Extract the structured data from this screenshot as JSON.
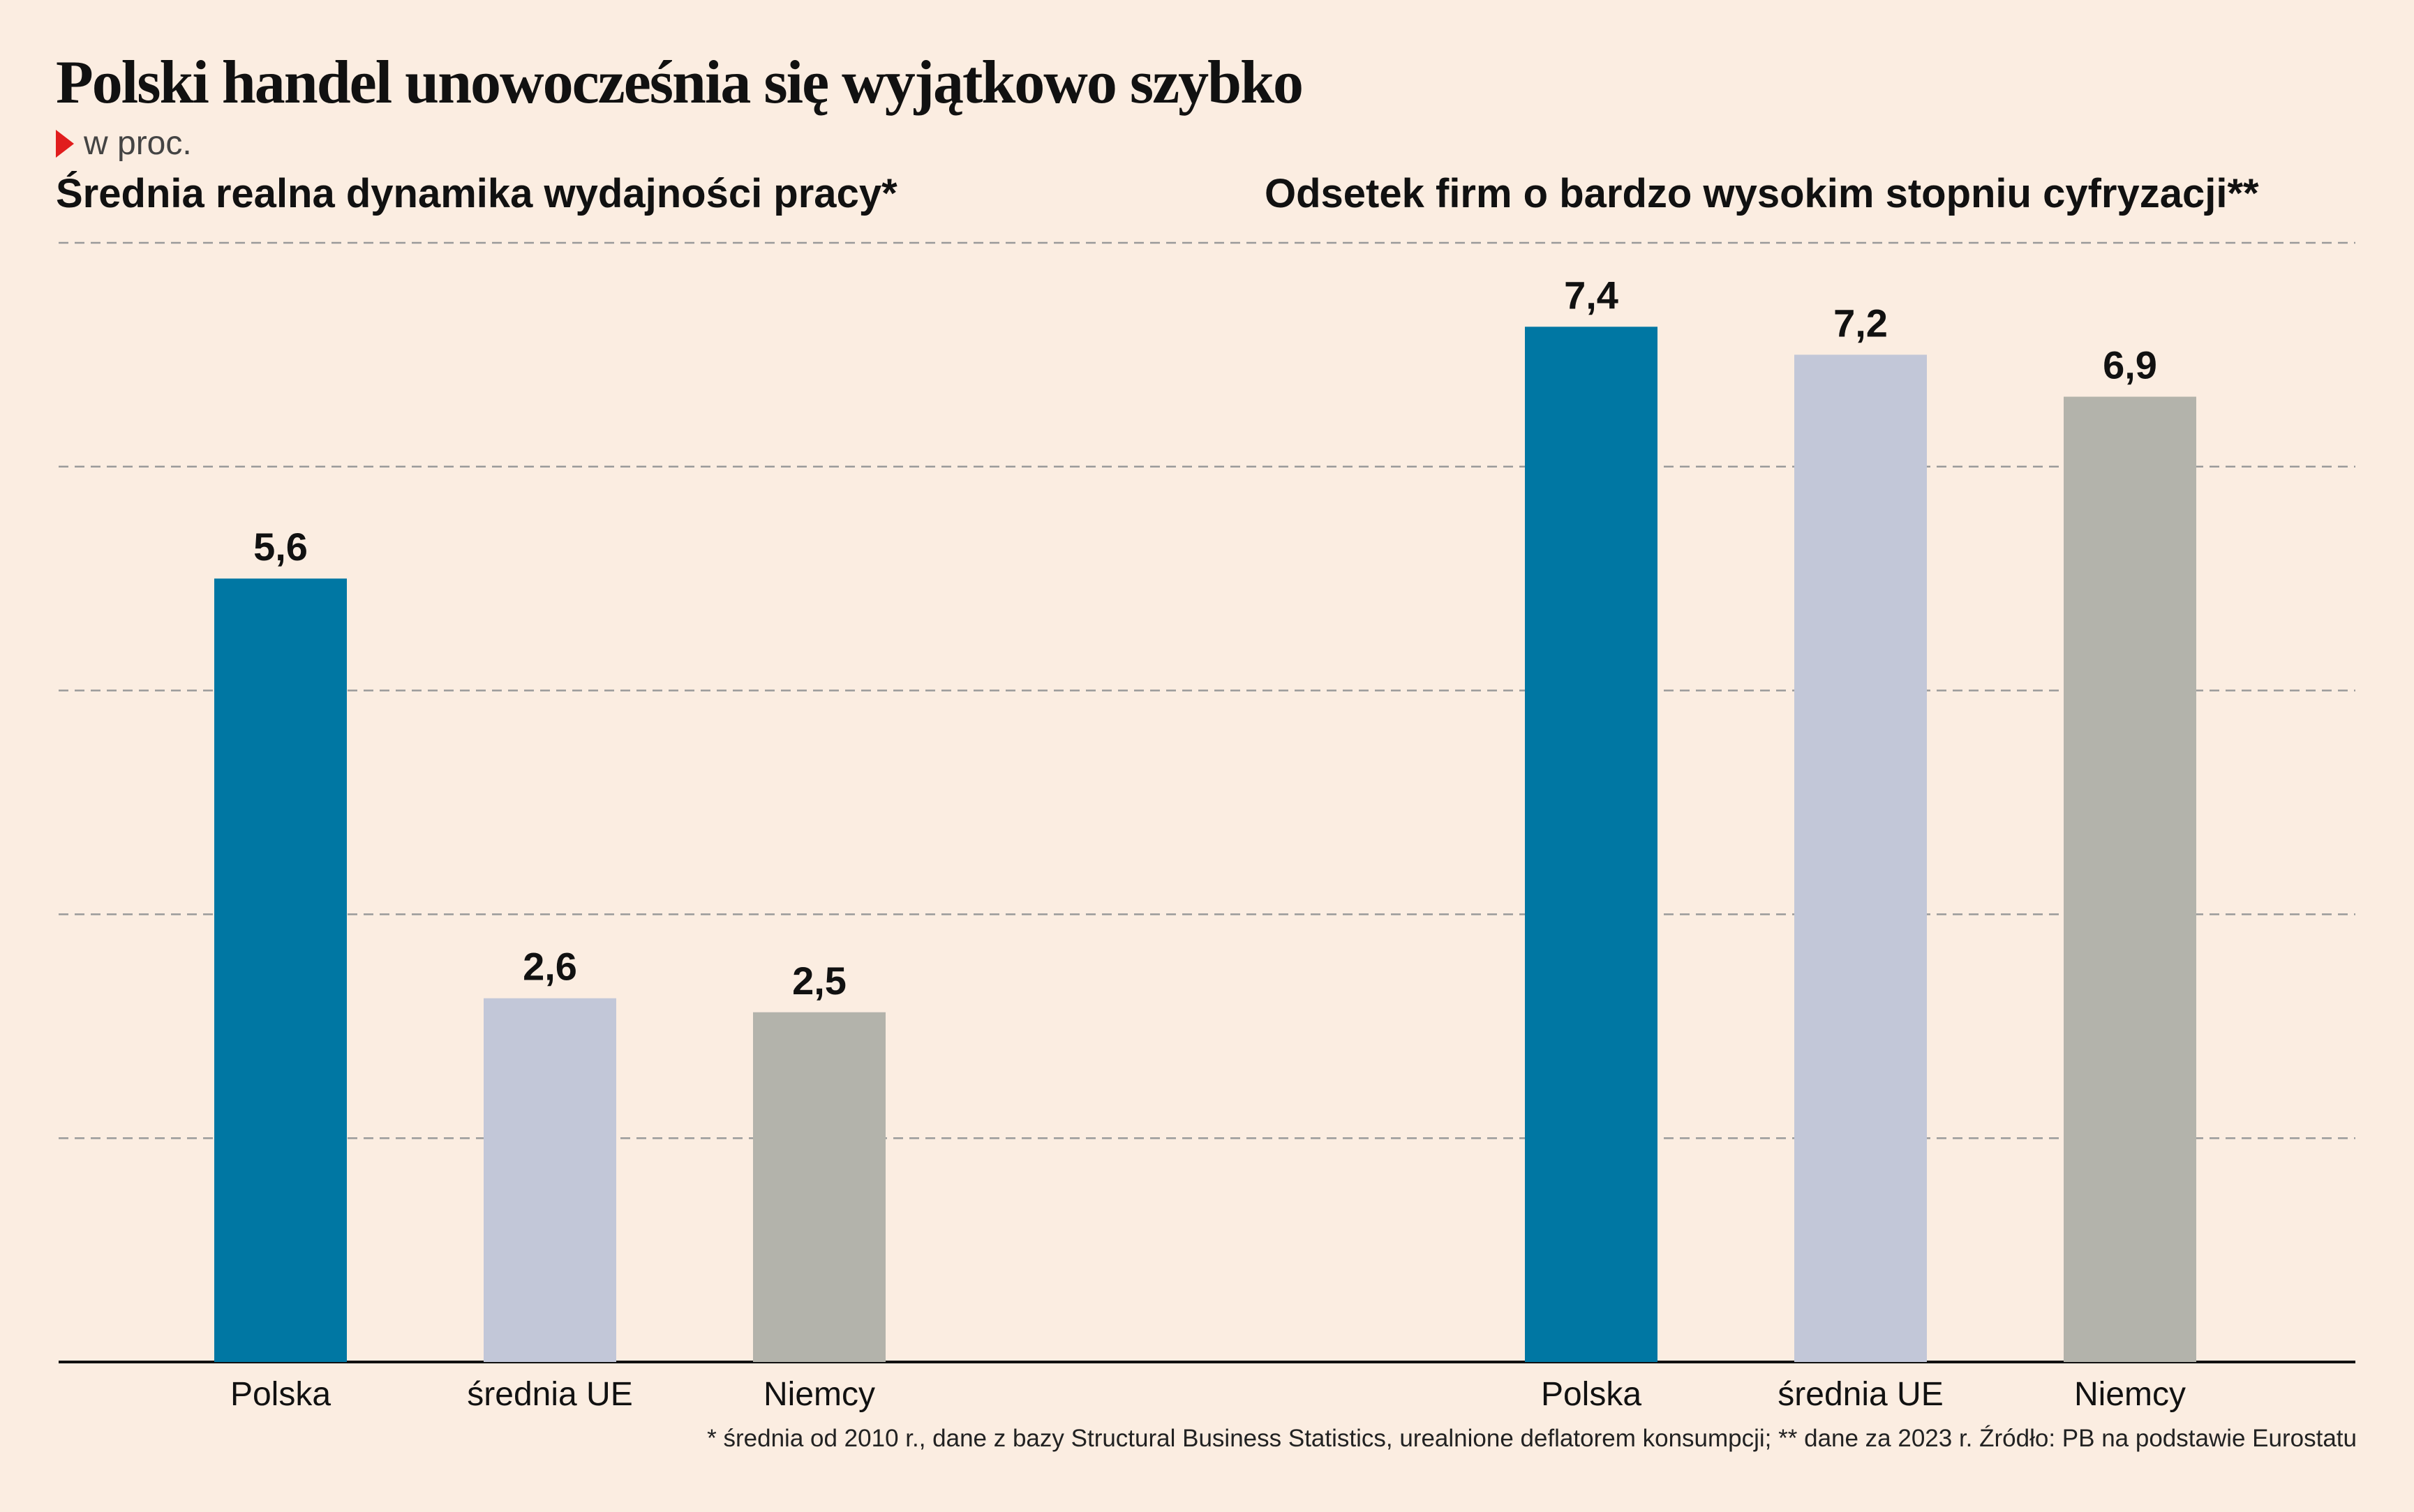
{
  "title": "Polski handel unowocześnia się wyjątkowo szybko",
  "unit": "w proc.",
  "colors": {
    "background": "#fbede1",
    "polska": "#0077a3",
    "srednia_ue": "#c2c7d8",
    "niemcy": "#b3b3ab",
    "gridline": "#9a9a9a",
    "axis": "#111111",
    "unit_marker": "#e11d1d"
  },
  "icons": {
    "unit_marker": "red-triangle-marker-icon"
  },
  "footnote": "* średnia od 2010 r., dane z bazy Structural Business Statistics, urealnione deflatorem konsumpcji; ** dane za 2023 r. Źródło: PB na podstawie Eurostatu",
  "chart_data": [
    {
      "type": "bar",
      "title": "Średnia realna dynamika wydajności pracy*",
      "categories": [
        "Polska",
        "średnia UE",
        "Niemcy"
      ],
      "values": [
        5.6,
        2.6,
        2.5
      ],
      "value_labels": [
        "5,6",
        "2,6",
        "2,5"
      ],
      "ylim": [
        0,
        8
      ],
      "grid": true,
      "xlabel": "",
      "ylabel": ""
    },
    {
      "type": "bar",
      "title": "Odsetek firm o bardzo wysokim stopniu cyfryzacji**",
      "categories": [
        "Polska",
        "średnia UE",
        "Niemcy"
      ],
      "values": [
        7.4,
        7.2,
        6.9
      ],
      "value_labels": [
        "7,4",
        "7,2",
        "6,9"
      ],
      "ylim": [
        0,
        8
      ],
      "grid": true,
      "xlabel": "",
      "ylabel": ""
    }
  ]
}
